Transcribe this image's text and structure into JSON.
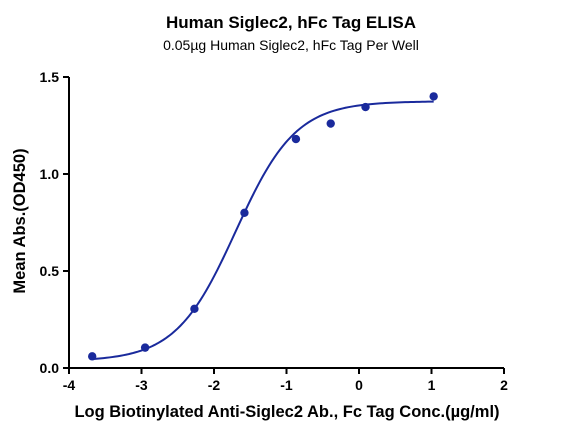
{
  "chart_data": {
    "type": "scatter",
    "title": "Human Siglec2, hFc Tag ELISA",
    "subtitle": "0.05µg Human Siglec2, hFc Tag Per Well",
    "xlabel": "Log Biotinylated Anti-Siglec2 Ab., Fc Tag Conc.(µg/ml)",
    "ylabel": "Mean Abs.(OD450)",
    "xlim": [
      -4,
      2
    ],
    "ylim": [
      0.0,
      1.5
    ],
    "x_ticks": [
      -4,
      -3,
      -2,
      -1,
      0,
      1,
      2
    ],
    "x_tick_labels": [
      "-4",
      "-3",
      "-2",
      "-1",
      "0",
      "1",
      "2"
    ],
    "y_ticks": [
      0.0,
      0.5,
      1.0,
      1.5
    ],
    "y_tick_labels": [
      "0.0",
      "0.5",
      "1.0",
      "1.5"
    ],
    "grid": false,
    "series_color": "#1a2a9c",
    "series": [
      {
        "points": [
          {
            "x": -3.68,
            "y": 0.06
          },
          {
            "x": -2.95,
            "y": 0.105
          },
          {
            "x": -2.27,
            "y": 0.305
          },
          {
            "x": -1.58,
            "y": 0.8
          },
          {
            "x": -0.87,
            "y": 1.18
          },
          {
            "x": -0.39,
            "y": 1.26
          },
          {
            "x": 0.09,
            "y": 1.345
          },
          {
            "x": 1.03,
            "y": 1.4
          }
        ],
        "fit": {
          "model": "four-parameter logistic",
          "bottom": 0.035,
          "top": 1.375,
          "log_ec50": -1.7,
          "hill_slope": 1.05,
          "x_range": [
            -3.68,
            1.03
          ]
        }
      }
    ]
  }
}
